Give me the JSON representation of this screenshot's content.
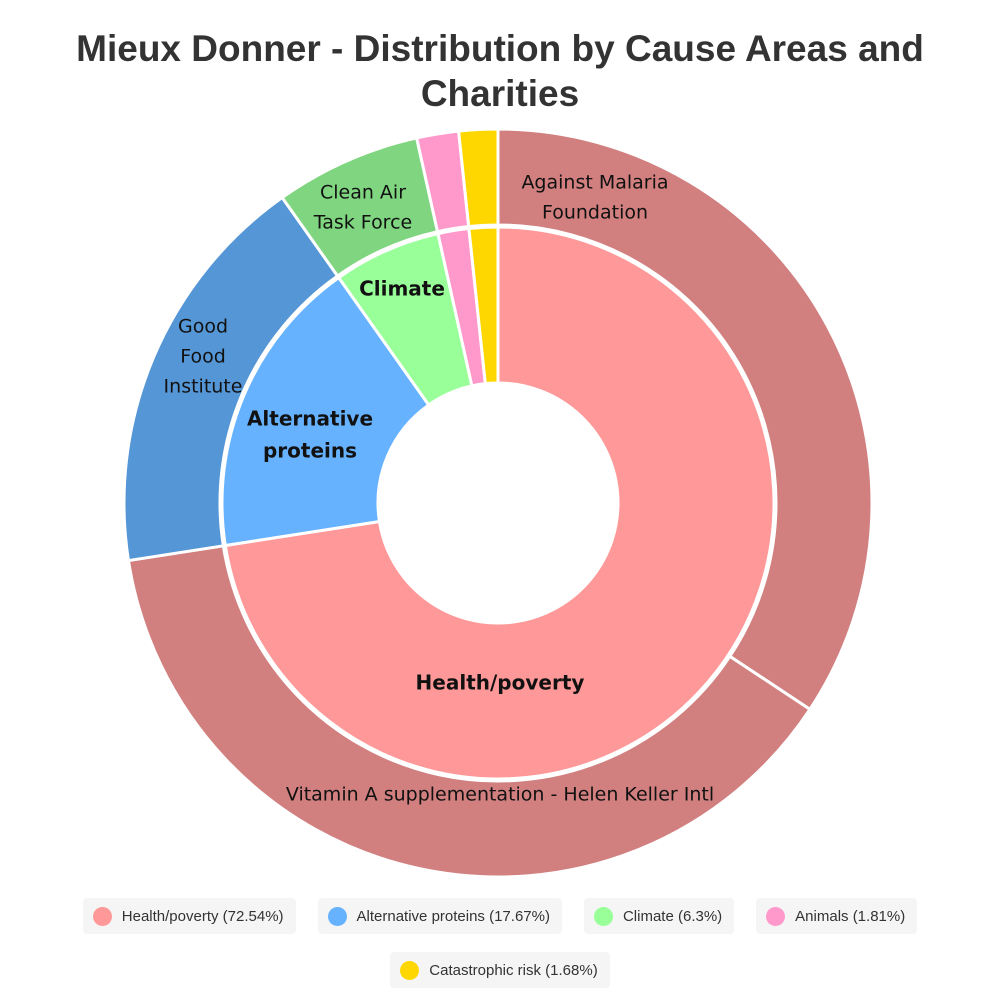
{
  "chart_data": {
    "type": "pie",
    "title": "Mieux Donner - Distribution by Cause Areas and Charities",
    "inner": [
      {
        "label": "Health/poverty",
        "value": 72.54,
        "color": "#ff9999"
      },
      {
        "label": "Alternative proteins",
        "value": 17.67,
        "color": "#66b2ff"
      },
      {
        "label": "Climate",
        "value": 6.3,
        "color": "#99ff99"
      },
      {
        "label": "Animals",
        "value": 1.81,
        "color": "#ff99cc"
      },
      {
        "label": "Catastrophic risk",
        "value": 1.68,
        "color": "#ffd700"
      }
    ],
    "outer": [
      {
        "label": "Against Malaria Foundation",
        "lines": [
          "Against Malaria",
          "Foundation"
        ],
        "value": 34.3,
        "color": "#d17f7f"
      },
      {
        "label": "Vitamin A supplementation - Helen Keller Intl",
        "lines": [
          "Vitamin A supplementation - Helen Keller Intl"
        ],
        "value": 38.24,
        "color": "#d17f7f"
      },
      {
        "label": "Good Food Institute",
        "lines": [
          "Good",
          "Food",
          "Institute"
        ],
        "value": 17.67,
        "color": "#5596d6"
      },
      {
        "label": "Clean Air Task Force",
        "lines": [
          "Clean Air",
          "Task Force"
        ],
        "value": 6.3,
        "color": "#80d680"
      },
      {
        "label": "",
        "lines": [],
        "value": 1.81,
        "color": "#ff99cc"
      },
      {
        "label": "",
        "lines": [],
        "value": 1.68,
        "color": "#ffd700"
      }
    ],
    "legend": [
      {
        "text": "Health/poverty (72.54%)",
        "color": "#ff9999"
      },
      {
        "text": "Alternative proteins (17.67%)",
        "color": "#66b2ff"
      },
      {
        "text": "Climate (6.3%)",
        "color": "#99ff99"
      },
      {
        "text": "Animals (1.81%)",
        "color": "#ff99cc"
      },
      {
        "text": "Catastrophic risk (1.68%)",
        "color": "#ffd700"
      }
    ],
    "legend_placement": "bottom"
  }
}
